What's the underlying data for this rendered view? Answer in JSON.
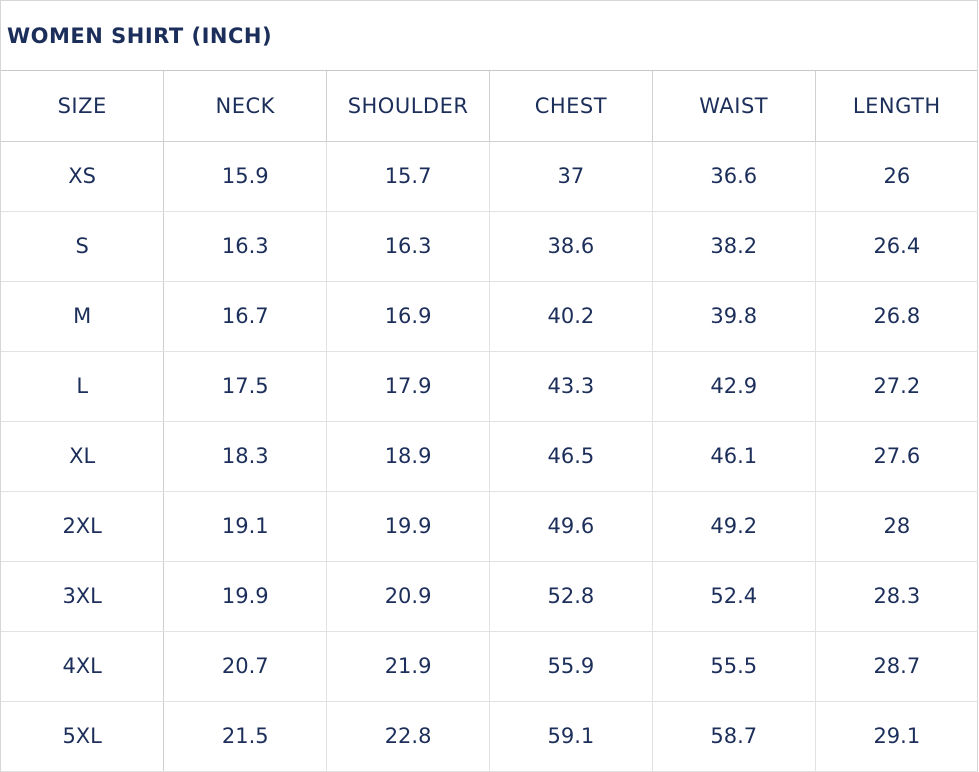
{
  "title": "WOMEN SHIRT (INCH)",
  "headers": [
    "SIZE",
    "NECK",
    "SHOULDER",
    "CHEST",
    "WAIST",
    "LENGTH"
  ],
  "rows": [
    [
      "XS",
      "15.9",
      "15.7",
      "37",
      "36.6",
      "26"
    ],
    [
      "S",
      "16.3",
      "16.3",
      "38.6",
      "38.2",
      "26.4"
    ],
    [
      "M",
      "16.7",
      "16.9",
      "40.2",
      "39.8",
      "26.8"
    ],
    [
      "L",
      "17.5",
      "17.9",
      "43.3",
      "42.9",
      "27.2"
    ],
    [
      "XL",
      "18.3",
      "18.9",
      "46.5",
      "46.1",
      "27.6"
    ],
    [
      "2XL",
      "19.1",
      "19.9",
      "49.6",
      "49.2",
      "28"
    ],
    [
      "3XL",
      "19.9",
      "20.9",
      "52.8",
      "52.4",
      "28.3"
    ],
    [
      "4XL",
      "20.7",
      "21.9",
      "55.9",
      "55.5",
      "28.7"
    ],
    [
      "5XL",
      "21.5",
      "22.8",
      "59.1",
      "58.7",
      "29.1"
    ]
  ]
}
